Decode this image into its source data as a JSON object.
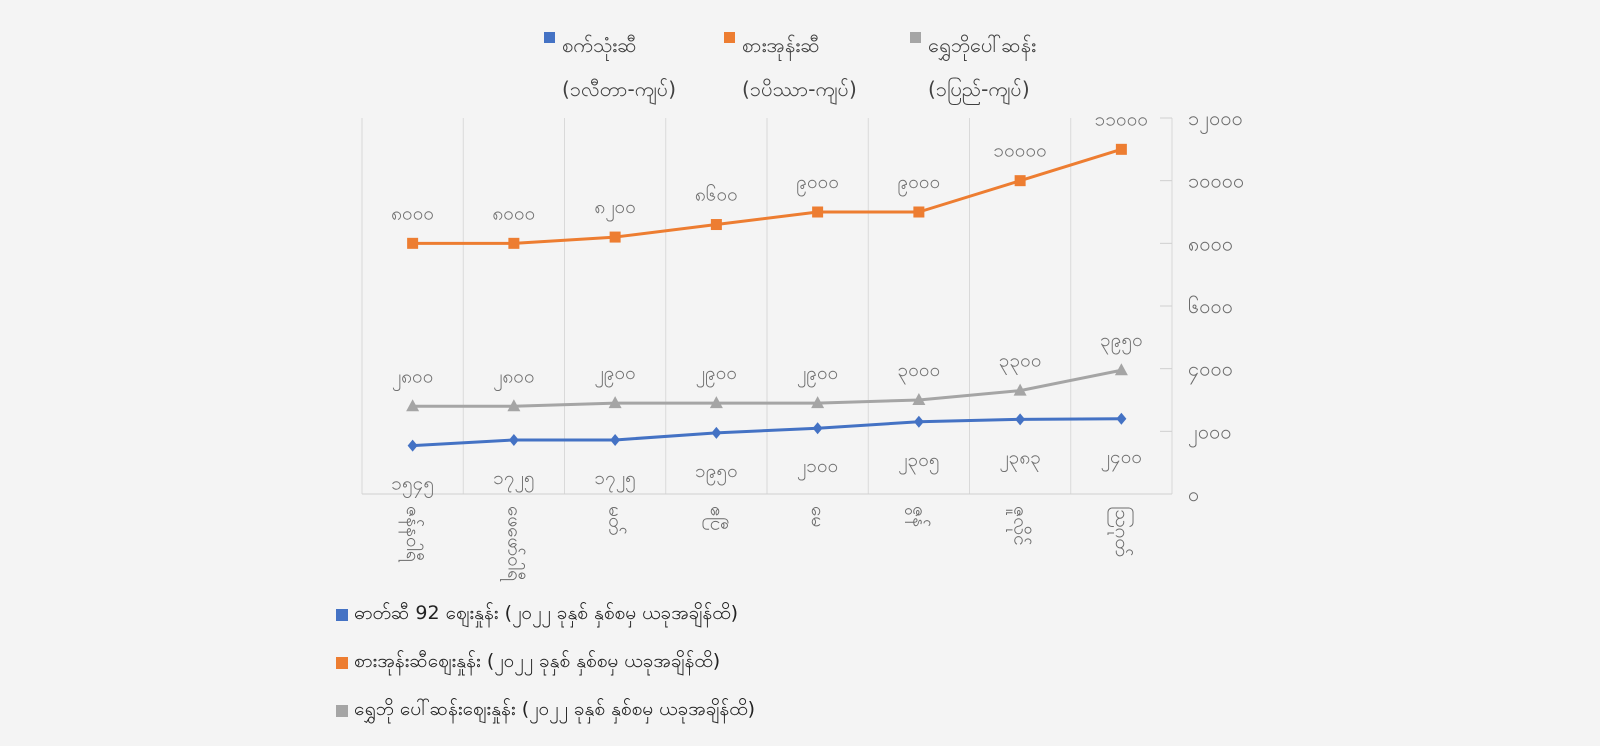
{
  "chart_data": {
    "type": "line",
    "legend_top": [
      {
        "label": "စက်သုံးဆီ",
        "unit": "(၁လီတာ-ကျပ်)",
        "color": "#4472c4"
      },
      {
        "label": "စားအုန်းဆီ",
        "unit": "(၁ပိဿာ-ကျပ်)",
        "color": "#ed7d31"
      },
      {
        "label": "ရွှေဘိုပေါ်ဆန်း",
        "unit": "(၁ပြည်-ကျပ်)",
        "color": "#a5a5a5"
      }
    ],
    "categories": [
      "ဇန်နဝါရီ",
      "ဖေဖော်ဝါရီ",
      "မတ်",
      "ဧပြီ",
      "မေ",
      "ဇွန်",
      "ဇူလိုင်",
      "ဩဂုတ်"
    ],
    "series": [
      {
        "name": "စားအုန်းဆီ",
        "color": "#ed7d31",
        "marker": "square",
        "values": [
          8000,
          8000,
          8200,
          8600,
          9000,
          9000,
          10000,
          11000
        ],
        "labels": [
          "၈၀၀၀",
          "၈၀၀၀",
          "၈၂၀၀",
          "၈၆၀၀",
          "၉၀၀၀",
          "၉၀၀၀",
          "၁၀၀၀၀",
          "၁၁၀၀၀"
        ]
      },
      {
        "name": "ရွှေဘိုပေါ်ဆန်း",
        "color": "#a5a5a5",
        "marker": "triangle",
        "values": [
          2800,
          2800,
          2900,
          2900,
          2900,
          3000,
          3300,
          3950
        ],
        "labels": [
          "၂၈၀၀",
          "၂၈၀၀",
          "၂၉၀၀",
          "၂၉၀၀",
          "၂၉၀၀",
          "၃၀၀၀",
          "၃၃၀၀",
          "၃၉၅၀"
        ]
      },
      {
        "name": "စက်သုံးဆီ",
        "color": "#4472c4",
        "marker": "diamond",
        "values": [
          1545,
          1725,
          1725,
          1950,
          2100,
          2305,
          2383,
          2400
        ],
        "labels": [
          "၁၅၄၅",
          "၁၇၂၅",
          "၁၇၂၅",
          "၁၉၅၀",
          "၂၁၀၀",
          "၂၃၀၅",
          "၂၃၈၃",
          "၂၄၀၀"
        ]
      }
    ],
    "y_axis": {
      "position": "right",
      "ylim": [
        0,
        12000
      ],
      "ticks": [
        0,
        2000,
        4000,
        6000,
        8000,
        10000,
        12000
      ],
      "tick_labels": [
        "၀",
        "၂၀၀၀",
        "၄၀၀၀",
        "၆၀၀၀",
        "၈၀၀၀",
        "၁၀၀၀၀",
        "၁၂၀၀၀"
      ]
    },
    "grid": "vertical",
    "legend_bottom": [
      {
        "label": "ဓာတ်ဆီ 92  ဈေးနှုန်း (၂၀၂၂ ခုနှစ် နှစ်စမှ ယခုအချိန်ထိ)",
        "color": "#4472c4"
      },
      {
        "label": "စားအုန်းဆီဈေးနှုန်း (၂၀၂၂ ခုနှစ် နှစ်စမှ ယခုအချိန်ထိ)",
        "color": "#ed7d31"
      },
      {
        "label": "ရွှေဘို ပေါ်ဆန်းဈေးနှုန်း (၂၀၂၂ ခုနှစ် နှစ်စမှ ယခုအချိန်ထိ)",
        "color": "#a5a5a5"
      }
    ]
  }
}
